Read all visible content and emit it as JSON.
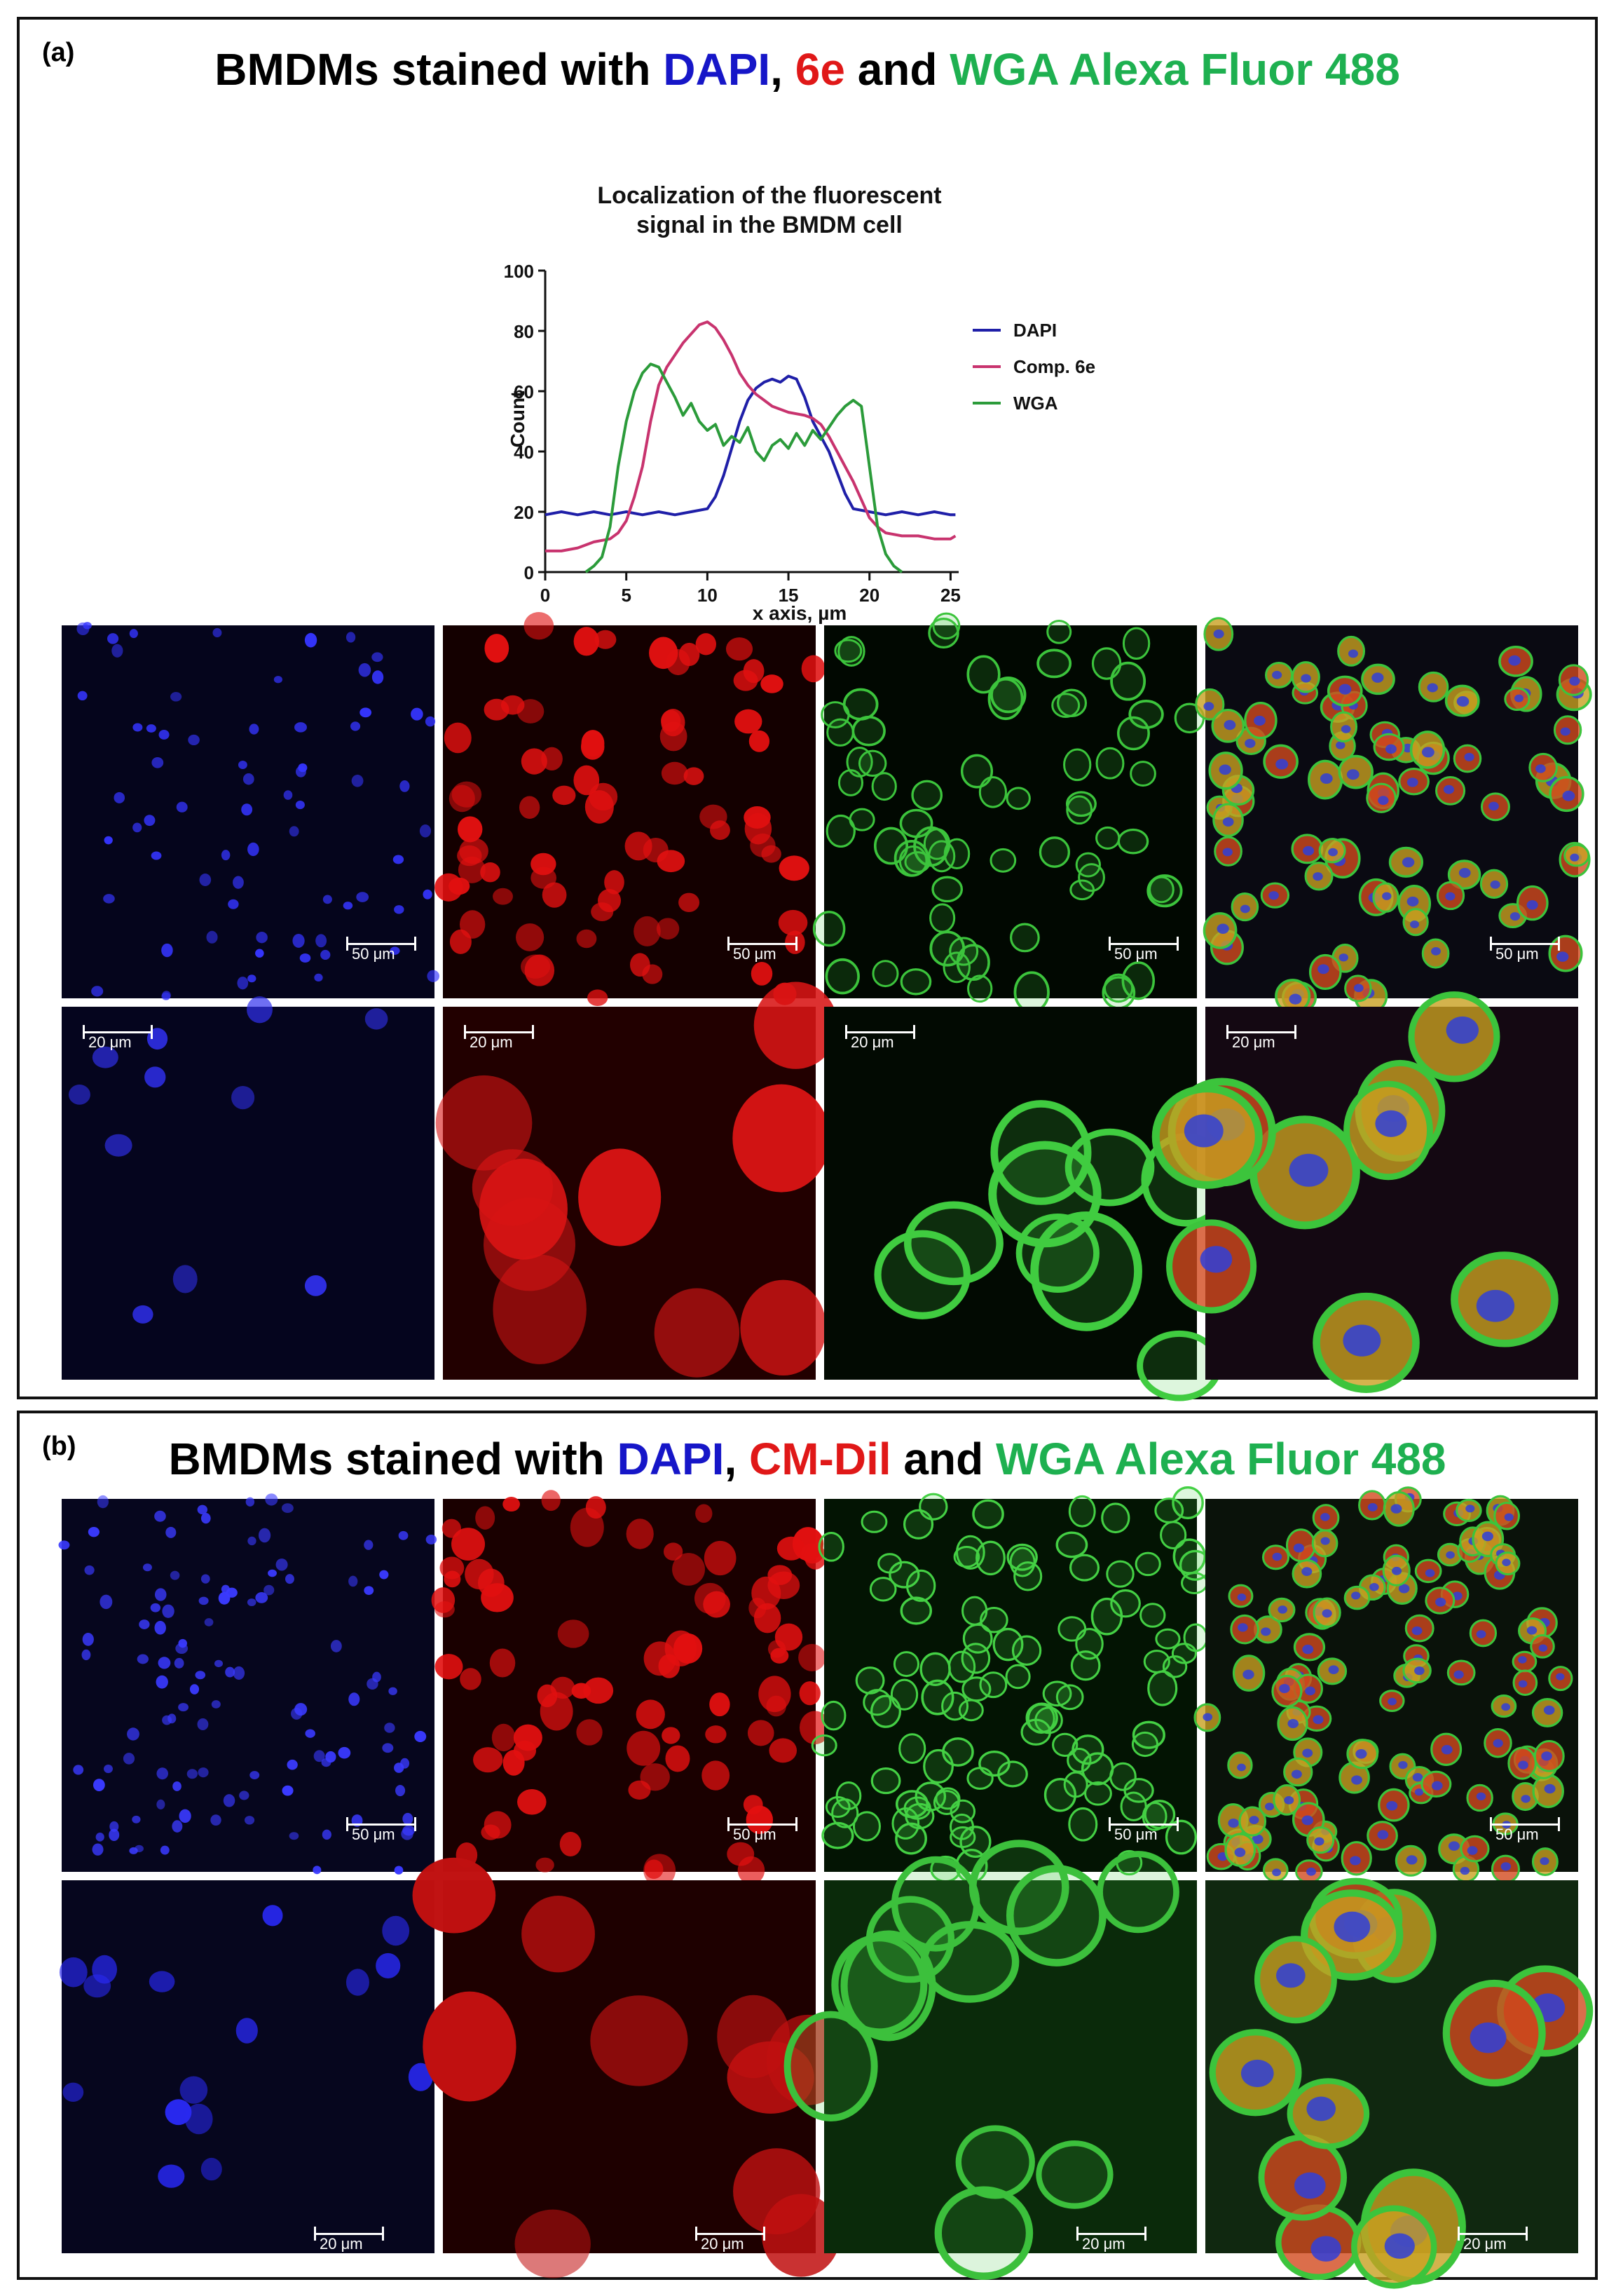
{
  "panel_a": {
    "label": "(a)",
    "title": {
      "prefix": "BMDMs stained with ",
      "stain1": "DAPI",
      "sep": ", ",
      "stain2": "6e",
      "mid": " and ",
      "stain3": "WGA Alexa Fluor 488"
    },
    "scale_top": "50 μm",
    "scale_bottom": "20 μm"
  },
  "panel_b": {
    "label": "(b)",
    "title": {
      "prefix": "BMDMs stained with ",
      "stain1": "DAPI",
      "sep": ", ",
      "stain2": "CM-Dil",
      "mid": " and ",
      "stain3": "WGA Alexa Fluor 488"
    },
    "scale_top": "50 μm",
    "scale_bottom": "20 μm"
  },
  "colors": {
    "dapi": "#1f1fa8",
    "comp6e": "#c8336e",
    "wga": "#2b9b3a",
    "title_blue": "#1616c8",
    "title_red": "#e01818",
    "title_green": "#1eb050"
  },
  "chart_data": {
    "type": "line",
    "title_line1": "Localization of the fluorescent",
    "title_line2": "signal in the BMDM cell",
    "xlabel": "x axis, µm",
    "ylabel": "Count",
    "xlim": [
      0,
      25.5
    ],
    "ylim": [
      0,
      100
    ],
    "xticks": [
      0,
      5,
      10,
      15,
      20,
      25
    ],
    "yticks": [
      0,
      20,
      40,
      60,
      80,
      100
    ],
    "legend_position": "top-right",
    "series": [
      {
        "name": "DAPI",
        "color": "#1f1fa8",
        "x": [
          0,
          1,
          2,
          3,
          4,
          5,
          6,
          7,
          8,
          9,
          10,
          10.5,
          11,
          11.5,
          12,
          12.5,
          13,
          13.5,
          14,
          14.5,
          15,
          15.5,
          16,
          16.5,
          17,
          17.5,
          18,
          18.5,
          19,
          20,
          21,
          22,
          23,
          24,
          25,
          25.3
        ],
        "y": [
          19,
          20,
          19,
          20,
          19,
          20,
          19,
          20,
          19,
          20,
          21,
          25,
          32,
          41,
          50,
          57,
          61,
          63,
          64,
          63,
          65,
          64,
          58,
          50,
          45,
          40,
          33,
          26,
          21,
          20,
          19,
          20,
          19,
          20,
          19,
          19
        ]
      },
      {
        "name": "Comp. 6e",
        "color": "#c8336e",
        "x": [
          0,
          1,
          2,
          3,
          4,
          4.5,
          5,
          5.5,
          6,
          6.5,
          7,
          7.5,
          8,
          8.5,
          9,
          9.5,
          10,
          10.5,
          11,
          11.5,
          12,
          12.5,
          13,
          13.5,
          14,
          15,
          16,
          16.5,
          17,
          17.5,
          18,
          18.5,
          19,
          19.5,
          20,
          20.5,
          21,
          22,
          23,
          24,
          25,
          25.3
        ],
        "y": [
          7,
          7,
          8,
          10,
          11,
          13,
          17,
          25,
          35,
          50,
          62,
          68,
          72,
          76,
          79,
          82,
          83,
          81,
          77,
          72,
          66,
          62,
          59,
          57,
          55,
          53,
          52,
          51,
          49,
          45,
          40,
          35,
          30,
          24,
          18,
          15,
          13,
          12,
          12,
          11,
          11,
          12
        ]
      },
      {
        "name": "WGA",
        "color": "#2b9b3a",
        "x": [
          2.5,
          3,
          3.5,
          4,
          4.5,
          5,
          5.5,
          6,
          6.5,
          7,
          7.5,
          8,
          8.5,
          9,
          9.5,
          10,
          10.5,
          11,
          11.5,
          12,
          12.5,
          13,
          13.5,
          14,
          14.5,
          15,
          15.5,
          16,
          16.5,
          17,
          17.5,
          18,
          18.5,
          19,
          19.5,
          20,
          20.5,
          21,
          21.5,
          22
        ],
        "y": [
          0,
          2,
          5,
          15,
          35,
          50,
          60,
          66,
          69,
          68,
          63,
          58,
          52,
          56,
          50,
          47,
          49,
          42,
          45,
          43,
          48,
          40,
          37,
          42,
          44,
          41,
          46,
          42,
          47,
          44,
          48,
          52,
          55,
          57,
          55,
          35,
          15,
          6,
          2,
          0
        ]
      }
    ]
  }
}
